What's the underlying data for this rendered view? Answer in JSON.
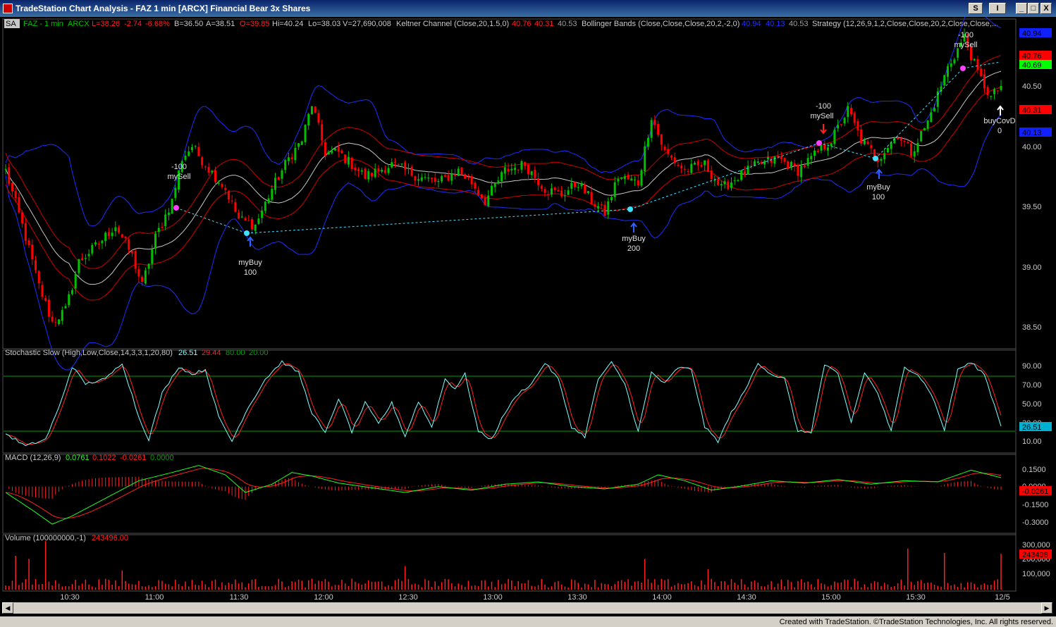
{
  "window": {
    "title": "TradeStation Chart Analysis - FAZ 1 min [ARCX] Financial Bear 3x Shares",
    "btn_s": "S",
    "btn_i": "I",
    "btn_min": "_",
    "btn_max": "□",
    "btn_close": "X"
  },
  "status_line": {
    "sa": "SA",
    "symbol": "FAZ - 1 min",
    "exchange": "ARCX",
    "last": "L=38.26",
    "change": "-2.74",
    "pct": "-6.68%",
    "bid": "B=36.50",
    "ask": "A=38.51",
    "open": "O=39.85",
    "high": "Hi=40.24",
    "low": "Lo=38.03",
    "volume": "V=27,690,008",
    "keltner": "Keltner Channel (Close,20,1.5,0)",
    "keltner_v1": "40.76",
    "keltner_v2": "40.31",
    "keltner_v3": "40.53",
    "bollinger": "Bollinger Bands (Close,Close,Close,20,2,-2,0)",
    "bb_v1": "40.94",
    "bb_v2": "40.13",
    "bb_v3": "40.53",
    "strategy": "Strategy (12,26,9,1,2,Close,Close,20,2,Close,Close,..."
  },
  "price_scale": {
    "ticks": [
      "40.50",
      "40.00",
      "39.50",
      "39.00",
      "38.50"
    ],
    "tags": [
      "40.94",
      "40.76",
      "40.69",
      "40.31",
      "40.13"
    ]
  },
  "stoch": {
    "label": "Stochastic Slow (High,Low,Close,14,3,3,1,20,80)",
    "v1": "26.51",
    "v2": "29.44",
    "v3": "80.00",
    "v4": "20.00",
    "ticks": [
      "90.00",
      "70.00",
      "50.00",
      "30.00",
      "10.00"
    ],
    "tag": "26.51"
  },
  "macd": {
    "label": "MACD (12,26,9)",
    "v1": "0.0761",
    "v2": "0.1022",
    "v3": "-0.0261",
    "v4": "0.0000",
    "ticks": [
      "0.1500",
      "0.0000",
      "-0.1500",
      "-0.3000"
    ],
    "tag": "-0.0261"
  },
  "volume": {
    "label": "Volume (100000000,-1)",
    "v1": "243496.00",
    "ticks": [
      "300,000",
      "200,000",
      "100,000"
    ],
    "tag": "243496"
  },
  "time_axis": [
    "10:30",
    "11:00",
    "11:30",
    "12:00",
    "12:30",
    "13:00",
    "13:30",
    "14:00",
    "14:30",
    "15:00",
    "15:30",
    "12/5"
  ],
  "trades": [
    {
      "top": "-100",
      "bottom": "mySell"
    },
    {
      "top": "myBuy",
      "bottom": "100"
    },
    {
      "top": "myBuy",
      "bottom": "200"
    },
    {
      "top": "-100",
      "bottom": "mySell"
    },
    {
      "top": "myBuy",
      "bottom": "100"
    },
    {
      "top": "-100",
      "bottom": "mySell"
    },
    {
      "top": "buyCovD",
      "bottom": "0"
    }
  ],
  "footer": "Created with TradeStation. ©TradeStation Technologies, Inc. All rights reserved.",
  "colors": {
    "up": "#00c000",
    "down": "#ff0000",
    "bollinger": "#1e2cff",
    "keltner": "#d00000",
    "mid": "#c8c8c8",
    "stoch_k": "#7fffff",
    "stoch_d": "#ff2020",
    "macd": "#20ff20",
    "signal": "#ff2020",
    "grid_green": "#00a000"
  },
  "chart_data": {
    "type": "candlestick",
    "symbol": "FAZ - 1 min",
    "price_range": [
      38.3,
      40.9
    ],
    "price_path": [
      [
        0,
        39.75
      ],
      [
        5,
        39.3
      ],
      [
        10,
        38.8
      ],
      [
        14,
        38.5
      ],
      [
        18,
        38.6
      ],
      [
        22,
        39.0
      ],
      [
        28,
        39.15
      ],
      [
        33,
        39.3
      ],
      [
        38,
        39.05
      ],
      [
        41,
        38.8
      ],
      [
        45,
        39.2
      ],
      [
        50,
        39.5
      ],
      [
        53,
        39.85
      ],
      [
        56,
        39.95
      ],
      [
        60,
        39.8
      ],
      [
        66,
        39.6
      ],
      [
        70,
        39.35
      ],
      [
        75,
        39.3
      ],
      [
        80,
        39.6
      ],
      [
        85,
        39.85
      ],
      [
        89,
        40.0
      ],
      [
        92,
        40.3
      ],
      [
        96,
        39.9
      ],
      [
        100,
        39.9
      ],
      [
        108,
        39.7
      ],
      [
        116,
        39.8
      ],
      [
        124,
        39.7
      ],
      [
        130,
        39.65
      ],
      [
        136,
        39.75
      ],
      [
        140,
        39.65
      ],
      [
        144,
        39.5
      ],
      [
        150,
        39.75
      ],
      [
        156,
        39.8
      ],
      [
        162,
        39.6
      ],
      [
        167,
        39.55
      ],
      [
        172,
        39.65
      ],
      [
        176,
        39.5
      ],
      [
        180,
        39.4
      ],
      [
        184,
        39.7
      ],
      [
        190,
        39.65
      ],
      [
        194,
        40.2
      ],
      [
        198,
        39.9
      ],
      [
        204,
        39.75
      ],
      [
        210,
        39.8
      ],
      [
        215,
        39.6
      ],
      [
        220,
        39.7
      ],
      [
        226,
        39.8
      ],
      [
        232,
        39.85
      ],
      [
        238,
        39.75
      ],
      [
        242,
        39.85
      ],
      [
        248,
        40.0
      ],
      [
        253,
        40.25
      ],
      [
        257,
        40.0
      ],
      [
        262,
        39.85
      ],
      [
        268,
        40.05
      ],
      [
        272,
        39.9
      ],
      [
        277,
        40.15
      ],
      [
        283,
        40.6
      ],
      [
        288,
        40.85
      ],
      [
        292,
        40.55
      ],
      [
        296,
        40.35
      ],
      [
        299,
        40.45
      ]
    ],
    "stochastic_slow": {
      "k_last": 26.51,
      "d_last": 29.44,
      "overbought": 80,
      "oversold": 20,
      "path": [
        [
          0,
          18
        ],
        [
          6,
          5
        ],
        [
          12,
          12
        ],
        [
          16,
          45
        ],
        [
          20,
          88
        ],
        [
          24,
          70
        ],
        [
          30,
          75
        ],
        [
          35,
          92
        ],
        [
          40,
          35
        ],
        [
          43,
          12
        ],
        [
          47,
          60
        ],
        [
          52,
          88
        ],
        [
          56,
          80
        ],
        [
          60,
          85
        ],
        [
          64,
          35
        ],
        [
          68,
          10
        ],
        [
          72,
          40
        ],
        [
          78,
          75
        ],
        [
          83,
          93
        ],
        [
          88,
          82
        ],
        [
          92,
          40
        ],
        [
          96,
          18
        ],
        [
          100,
          55
        ],
        [
          104,
          20
        ],
        [
          108,
          50
        ],
        [
          112,
          28
        ],
        [
          116,
          50
        ],
        [
          120,
          15
        ],
        [
          124,
          52
        ],
        [
          128,
          25
        ],
        [
          132,
          75
        ],
        [
          135,
          65
        ],
        [
          138,
          80
        ],
        [
          142,
          20
        ],
        [
          146,
          12
        ],
        [
          150,
          40
        ],
        [
          154,
          60
        ],
        [
          158,
          70
        ],
        [
          162,
          92
        ],
        [
          166,
          75
        ],
        [
          170,
          25
        ],
        [
          174,
          15
        ],
        [
          178,
          75
        ],
        [
          182,
          92
        ],
        [
          186,
          70
        ],
        [
          190,
          20
        ],
        [
          194,
          82
        ],
        [
          198,
          70
        ],
        [
          202,
          87
        ],
        [
          206,
          85
        ],
        [
          210,
          25
        ],
        [
          214,
          10
        ],
        [
          218,
          40
        ],
        [
          222,
          62
        ],
        [
          226,
          92
        ],
        [
          230,
          80
        ],
        [
          234,
          75
        ],
        [
          238,
          20
        ],
        [
          242,
          20
        ],
        [
          246,
          90
        ],
        [
          250,
          80
        ],
        [
          254,
          30
        ],
        [
          258,
          82
        ],
        [
          262,
          60
        ],
        [
          266,
          20
        ],
        [
          270,
          88
        ],
        [
          274,
          80
        ],
        [
          278,
          60
        ],
        [
          282,
          22
        ],
        [
          286,
          85
        ],
        [
          290,
          92
        ],
        [
          294,
          80
        ],
        [
          299,
          26.51
        ]
      ]
    },
    "macd": {
      "macd_last": 0.0761,
      "signal_last": 0.1022,
      "hist_last": -0.0261,
      "path": [
        [
          0,
          -0.05
        ],
        [
          8,
          -0.2
        ],
        [
          14,
          -0.32
        ],
        [
          20,
          -0.25
        ],
        [
          30,
          -0.1
        ],
        [
          40,
          0.05
        ],
        [
          50,
          0.12
        ],
        [
          58,
          0.18
        ],
        [
          66,
          0.1
        ],
        [
          72,
          -0.05
        ],
        [
          80,
          0.02
        ],
        [
          86,
          0.12
        ],
        [
          92,
          0.09
        ],
        [
          100,
          0.03
        ],
        [
          110,
          -0.01
        ],
        [
          120,
          -0.05
        ],
        [
          130,
          0.0
        ],
        [
          140,
          -0.03
        ],
        [
          150,
          0.02
        ],
        [
          160,
          0.04
        ],
        [
          170,
          0.0
        ],
        [
          180,
          -0.02
        ],
        [
          190,
          0.02
        ],
        [
          196,
          0.1
        ],
        [
          204,
          0.05
        ],
        [
          212,
          -0.03
        ],
        [
          220,
          0.0
        ],
        [
          230,
          0.05
        ],
        [
          240,
          0.03
        ],
        [
          250,
          0.06
        ],
        [
          260,
          0.02
        ],
        [
          270,
          0.05
        ],
        [
          280,
          0.04
        ],
        [
          290,
          0.14
        ],
        [
          299,
          0.0761
        ]
      ]
    },
    "volume": {
      "last": 243496,
      "range": [
        0,
        350000
      ],
      "spikes": [
        [
          3,
          230000
        ],
        [
          7,
          210000
        ],
        [
          12,
          330000
        ],
        [
          35,
          130000
        ],
        [
          120,
          160000
        ],
        [
          192,
          210000
        ],
        [
          211,
          140000
        ],
        [
          271,
          280000
        ],
        [
          282,
          250000
        ],
        [
          299,
          243496
        ]
      ]
    }
  }
}
